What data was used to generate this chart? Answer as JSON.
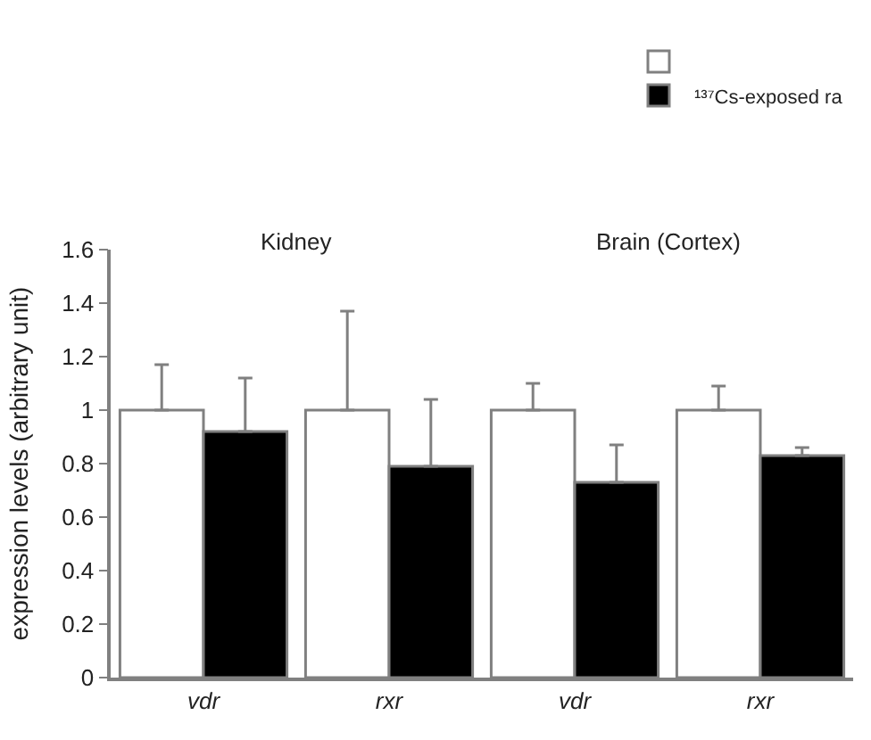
{
  "chart_data": {
    "type": "bar",
    "ylabel": "expression levels (arbitrary unit)",
    "categories": [
      "vdr",
      "rxr",
      "vdr",
      "rxr"
    ],
    "annotations": [
      "Kidney",
      "Brain (Cortex)"
    ],
    "series": [
      {
        "color": "#ffffff",
        "values": [
          1.0,
          1.0,
          1.0,
          1.0
        ],
        "errors": [
          [
            1.0,
            1.17
          ],
          [
            1.0,
            1.37
          ],
          [
            1.0,
            1.1
          ],
          [
            1.0,
            1.09
          ]
        ]
      },
      {
        "name": "¹³⁷Cs-exposed ra",
        "color": "#000000",
        "values": [
          0.92,
          0.79,
          0.73,
          0.83
        ],
        "errors": [
          [
            0.92,
            1.12
          ],
          [
            0.79,
            1.04
          ],
          [
            0.73,
            0.87
          ],
          [
            0.83,
            0.86
          ]
        ]
      }
    ],
    "ylim": [
      0,
      1.6
    ],
    "yticks": [
      0,
      0.2,
      0.4,
      0.6,
      0.8,
      1,
      1.2,
      1.4,
      1.6
    ],
    "legend": "top right"
  }
}
